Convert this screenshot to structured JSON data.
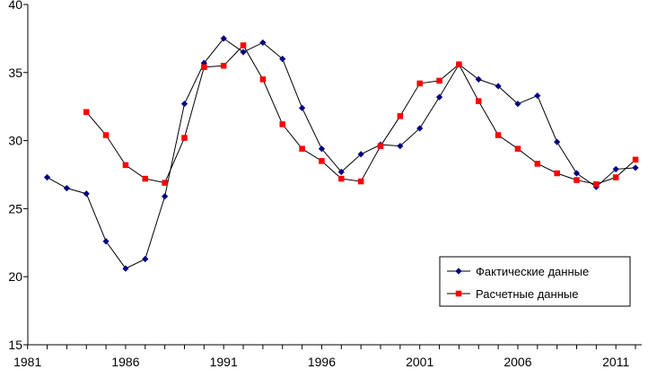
{
  "chart_data": {
    "type": "line",
    "xlim": [
      1981,
      2013
    ],
    "ylim": [
      15,
      40
    ],
    "x_ticks": [
      "1981",
      "1986",
      "1991",
      "1996",
      "2001",
      "2006",
      "2011"
    ],
    "y_ticks": [
      "15",
      "20",
      "25",
      "30",
      "35",
      "40"
    ],
    "grid": false,
    "legend_position": "bottom-right",
    "series": [
      {
        "name": "Фактические данные",
        "color": "#000080",
        "marker": "diamond",
        "points": [
          [
            1982,
            27.3
          ],
          [
            1983,
            26.5
          ],
          [
            1984,
            26.1
          ],
          [
            1985,
            22.6
          ],
          [
            1986,
            20.6
          ],
          [
            1987,
            21.3
          ],
          [
            1988,
            25.9
          ],
          [
            1989,
            32.7
          ],
          [
            1990,
            35.7
          ],
          [
            1991,
            37.5
          ],
          [
            1992,
            36.5
          ],
          [
            1993,
            37.2
          ],
          [
            1994,
            36.0
          ],
          [
            1995,
            32.4
          ],
          [
            1996,
            29.4
          ],
          [
            1997,
            27.7
          ],
          [
            1998,
            29.0
          ],
          [
            1999,
            29.7
          ],
          [
            2000,
            29.6
          ],
          [
            2001,
            30.9
          ],
          [
            2002,
            33.2
          ],
          [
            2003,
            35.6
          ],
          [
            2004,
            34.5
          ],
          [
            2005,
            34.0
          ],
          [
            2006,
            32.7
          ],
          [
            2007,
            33.3
          ],
          [
            2008,
            29.9
          ],
          [
            2009,
            27.6
          ],
          [
            2010,
            26.6
          ],
          [
            2011,
            27.9
          ],
          [
            2012,
            28.0
          ]
        ]
      },
      {
        "name": "Расчетные данные",
        "color": "#ff0000",
        "marker": "square",
        "points": [
          [
            1984,
            32.1
          ],
          [
            1985,
            30.4
          ],
          [
            1986,
            28.2
          ],
          [
            1987,
            27.2
          ],
          [
            1988,
            26.9
          ],
          [
            1989,
            30.2
          ],
          [
            1990,
            35.4
          ],
          [
            1991,
            35.5
          ],
          [
            1992,
            37.0
          ],
          [
            1993,
            34.5
          ],
          [
            1994,
            31.2
          ],
          [
            1995,
            29.4
          ],
          [
            1996,
            28.5
          ],
          [
            1997,
            27.2
          ],
          [
            1998,
            27.0
          ],
          [
            1999,
            29.6
          ],
          [
            2000,
            31.8
          ],
          [
            2001,
            34.2
          ],
          [
            2002,
            34.4
          ],
          [
            2003,
            35.6
          ],
          [
            2004,
            32.9
          ],
          [
            2005,
            30.4
          ],
          [
            2006,
            29.4
          ],
          [
            2007,
            28.3
          ],
          [
            2008,
            27.6
          ],
          [
            2009,
            27.1
          ],
          [
            2010,
            26.8
          ],
          [
            2011,
            27.3
          ],
          [
            2012,
            28.6
          ]
        ]
      }
    ]
  }
}
